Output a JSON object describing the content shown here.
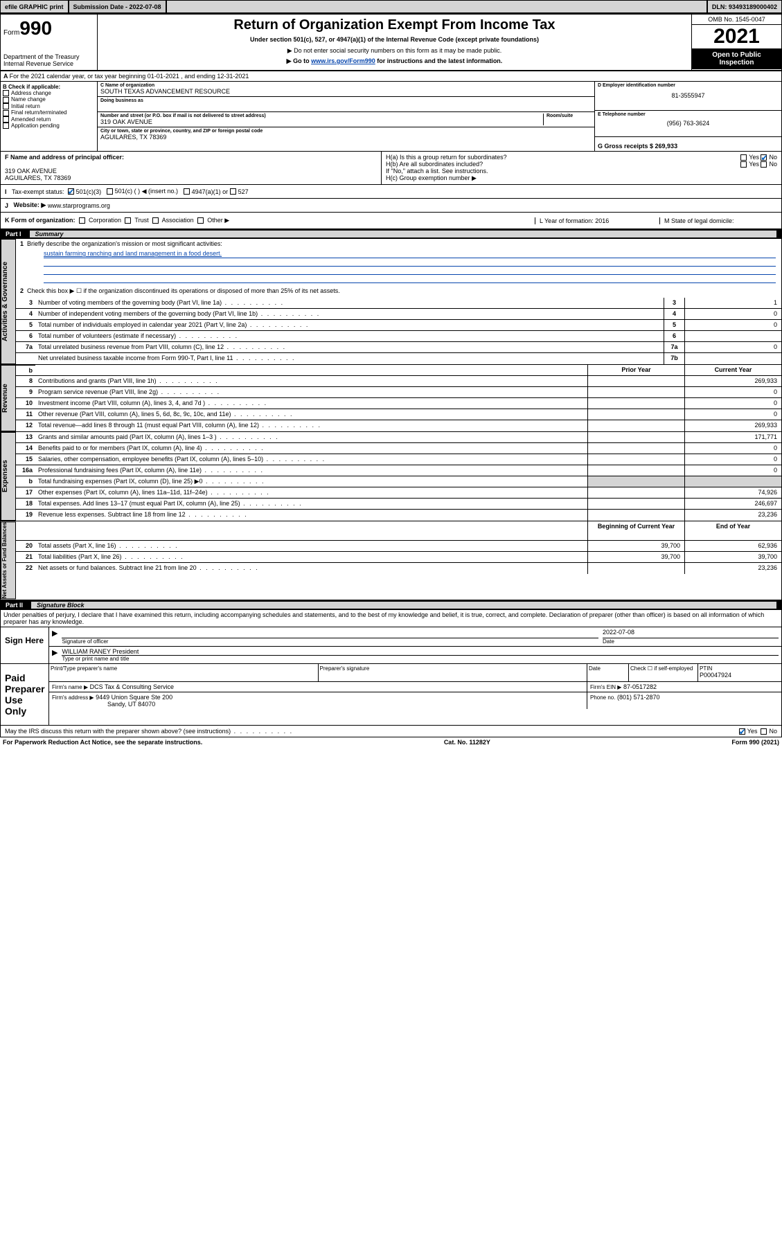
{
  "topbar": {
    "efile": "efile GRAPHIC print",
    "submission_label": "Submission Date - 2022-07-08",
    "dln_label": "DLN: 93493189000402"
  },
  "header": {
    "form_label": "Form",
    "form_number": "990",
    "title": "Return of Organization Exempt From Income Tax",
    "subtitle1": "Under section 501(c), 527, or 4947(a)(1) of the Internal Revenue Code (except private foundations)",
    "subtitle2": "▶ Do not enter social security numbers on this form as it may be made public.",
    "subtitle3_prefix": "▶ Go to ",
    "subtitle3_link": "www.irs.gov/Form990",
    "subtitle3_suffix": " for instructions and the latest information.",
    "dept": "Department of the Treasury",
    "irs": "Internal Revenue Service",
    "omb": "OMB No. 1545-0047",
    "year": "2021",
    "open_public": "Open to Public Inspection"
  },
  "line_a": "For the 2021 calendar year, or tax year beginning 01-01-2021   , and ending 12-31-2021",
  "section_b": {
    "label": "B Check if applicable:",
    "items": [
      "Address change",
      "Name change",
      "Initial return",
      "Final return/terminated",
      "Amended return",
      "Application pending"
    ]
  },
  "section_c": {
    "name_label": "C Name of organization",
    "name": "SOUTH TEXAS ADVANCEMENT RESOURCE",
    "dba_label": "Doing business as",
    "addr_label": "Number and street (or P.O. box if mail is not delivered to street address)",
    "room_label": "Room/suite",
    "addr": "319 OAK AVENUE",
    "city_label": "City or town, state or province, country, and ZIP or foreign postal code",
    "city": "AGUILARES, TX  78369"
  },
  "section_d": {
    "label": "D Employer identification number",
    "value": "81-3555947"
  },
  "section_e": {
    "label": "E Telephone number",
    "value": "(956) 763-3624"
  },
  "section_g": {
    "label": "G Gross receipts $ 269,933"
  },
  "section_f": {
    "label": "F  Name and address of principal officer:",
    "line1": "319 OAK AVENUE",
    "line2": "AGUILARES, TX  78369"
  },
  "section_h": {
    "a": "H(a)  Is this a group return for subordinates?",
    "b": "H(b)  Are all subordinates included?",
    "b_note": "If \"No,\" attach a list. See instructions.",
    "c": "H(c)  Group exemption number ▶",
    "yes": "Yes",
    "no": "No"
  },
  "line_i": {
    "label": "Tax-exempt status:",
    "opt1": "501(c)(3)",
    "opt2": "501(c) (  ) ◀ (insert no.)",
    "opt3": "4947(a)(1) or",
    "opt4": "527"
  },
  "line_j": {
    "label": "Website: ▶",
    "value": "www.starprograms.org"
  },
  "line_k": {
    "label": "K Form of organization:",
    "opts": [
      "Corporation",
      "Trust",
      "Association",
      "Other ▶"
    ]
  },
  "line_l": {
    "label": "L Year of formation: 2016"
  },
  "line_m": {
    "label": "M State of legal domicile:"
  },
  "part1": {
    "header_num": "Part I",
    "header_title": "Summary",
    "line1_label": "Briefly describe the organization's mission or most significant activities:",
    "line1_text": "sustain farming ranching and land management in a food desert.",
    "line2": "Check this box ▶ ☐  if the organization discontinued its operations or disposed of more than 25% of its net assets.",
    "rows_ag": [
      {
        "n": "3",
        "label": "Number of voting members of the governing body (Part VI, line 1a)",
        "box": "3",
        "val": "1"
      },
      {
        "n": "4",
        "label": "Number of independent voting members of the governing body (Part VI, line 1b)",
        "box": "4",
        "val": "0"
      },
      {
        "n": "5",
        "label": "Total number of individuals employed in calendar year 2021 (Part V, line 2a)",
        "box": "5",
        "val": "0"
      },
      {
        "n": "6",
        "label": "Total number of volunteers (estimate if necessary)",
        "box": "6",
        "val": ""
      },
      {
        "n": "7a",
        "label": "Total unrelated business revenue from Part VIII, column (C), line 12",
        "box": "7a",
        "val": "0"
      },
      {
        "n": "",
        "label": "Net unrelated business taxable income from Form 990-T, Part I, line 11",
        "box": "7b",
        "val": ""
      }
    ],
    "col_prior": "Prior Year",
    "col_current": "Current Year",
    "rows_rev": [
      {
        "n": "8",
        "label": "Contributions and grants (Part VIII, line 1h)",
        "p": "",
        "c": "269,933"
      },
      {
        "n": "9",
        "label": "Program service revenue (Part VIII, line 2g)",
        "p": "",
        "c": "0"
      },
      {
        "n": "10",
        "label": "Investment income (Part VIII, column (A), lines 3, 4, and 7d )",
        "p": "",
        "c": "0"
      },
      {
        "n": "11",
        "label": "Other revenue (Part VIII, column (A), lines 5, 6d, 8c, 9c, 10c, and 11e)",
        "p": "",
        "c": "0"
      },
      {
        "n": "12",
        "label": "Total revenue—add lines 8 through 11 (must equal Part VIII, column (A), line 12)",
        "p": "",
        "c": "269,933"
      }
    ],
    "rows_exp": [
      {
        "n": "13",
        "label": "Grants and similar amounts paid (Part IX, column (A), lines 1–3 )",
        "p": "",
        "c": "171,771"
      },
      {
        "n": "14",
        "label": "Benefits paid to or for members (Part IX, column (A), line 4)",
        "p": "",
        "c": "0"
      },
      {
        "n": "15",
        "label": "Salaries, other compensation, employee benefits (Part IX, column (A), lines 5–10)",
        "p": "",
        "c": "0"
      },
      {
        "n": "16a",
        "label": "Professional fundraising fees (Part IX, column (A), line 11e)",
        "p": "",
        "c": "0"
      },
      {
        "n": "b",
        "label": "Total fundraising expenses (Part IX, column (D), line 25) ▶0",
        "p": "shade",
        "c": "shade"
      },
      {
        "n": "17",
        "label": "Other expenses (Part IX, column (A), lines 11a–11d, 11f–24e)",
        "p": "",
        "c": "74,926"
      },
      {
        "n": "18",
        "label": "Total expenses. Add lines 13–17 (must equal Part IX, column (A), line 25)",
        "p": "",
        "c": "246,697"
      },
      {
        "n": "19",
        "label": "Revenue less expenses. Subtract line 18 from line 12",
        "p": "",
        "c": "23,236"
      }
    ],
    "col_begin": "Beginning of Current Year",
    "col_end": "End of Year",
    "rows_net": [
      {
        "n": "20",
        "label": "Total assets (Part X, line 16)",
        "p": "39,700",
        "c": "62,936"
      },
      {
        "n": "21",
        "label": "Total liabilities (Part X, line 26)",
        "p": "39,700",
        "c": "39,700"
      },
      {
        "n": "22",
        "label": "Net assets or fund balances. Subtract line 21 from line 20",
        "p": "",
        "c": "23,236"
      }
    ],
    "sidebar_ag": "Activities & Governance",
    "sidebar_rev": "Revenue",
    "sidebar_exp": "Expenses",
    "sidebar_net": "Net Assets or Fund Balances"
  },
  "part2": {
    "header_num": "Part II",
    "header_title": "Signature Block",
    "declaration": "Under penalties of perjury, I declare that I have examined this return, including accompanying schedules and statements, and to the best of my knowledge and belief, it is true, correct, and complete. Declaration of preparer (other than officer) is based on all information of which preparer has any knowledge.",
    "sign_here": "Sign Here",
    "sig_officer": "Signature of officer",
    "sig_date": "Date",
    "sig_date_val": "2022-07-08",
    "officer_name": "WILLIAM RANEY President",
    "officer_label": "Type or print name and title",
    "paid_prep": "Paid Preparer Use Only",
    "prep_name_label": "Print/Type preparer's name",
    "prep_sig_label": "Preparer's signature",
    "prep_date_label": "Date",
    "prep_check": "Check ☐ if self-employed",
    "ptin_label": "PTIN",
    "ptin": "P00047924",
    "firm_name_label": "Firm's name    ▶",
    "firm_name": "DCS Tax & Consulting Service",
    "firm_ein_label": "Firm's EIN ▶",
    "firm_ein": "87-0517282",
    "firm_addr_label": "Firm's address ▶",
    "firm_addr1": "9449 Union Square Ste 200",
    "firm_addr2": "Sandy, UT  84070",
    "phone_label": "Phone no.",
    "phone": "(801) 571-2870",
    "may_irs": "May the IRS discuss this return with the preparer shown above? (see instructions)"
  },
  "footer": {
    "left": "For Paperwork Reduction Act Notice, see the separate instructions.",
    "mid": "Cat. No. 11282Y",
    "right": "Form 990 (2021)"
  }
}
